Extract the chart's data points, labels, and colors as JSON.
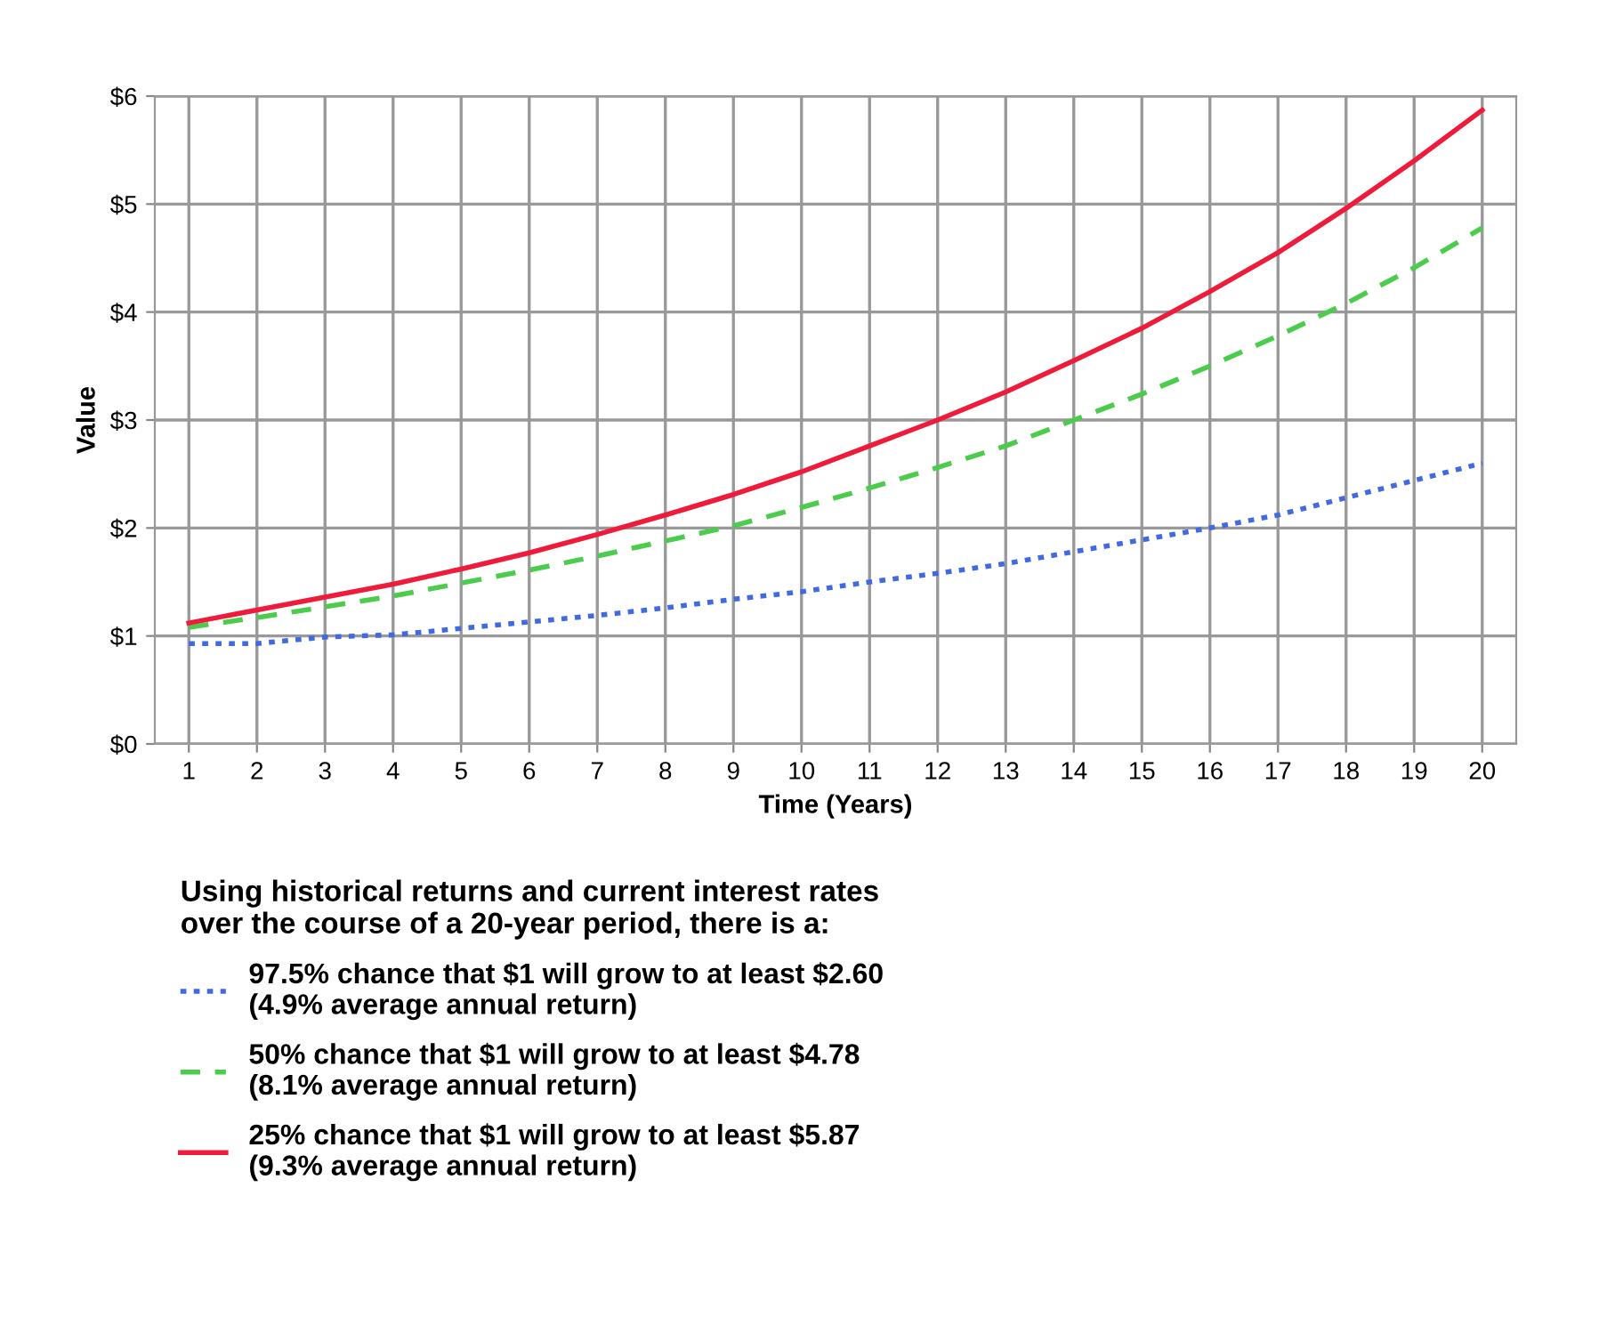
{
  "chart_data": {
    "type": "line",
    "xlabel": "Time (Years)",
    "ylabel": "Value",
    "legend_title": "Using historical returns and current interest rates\nover the course of a 20-year period, there is a:",
    "x": [
      1,
      2,
      3,
      4,
      5,
      6,
      7,
      8,
      9,
      10,
      11,
      12,
      13,
      14,
      15,
      16,
      17,
      18,
      19,
      20
    ],
    "series": [
      {
        "name": "97.5% chance that $1 will grow to at least $2.60\n(4.9% average annual return)",
        "color": "#4169e1",
        "line_style": "dotted",
        "values": [
          0.93,
          0.93,
          0.99,
          1.01,
          1.07,
          1.13,
          1.19,
          1.26,
          1.34,
          1.41,
          1.5,
          1.58,
          1.67,
          1.78,
          1.89,
          2.0,
          2.12,
          2.28,
          2.44,
          2.6
        ]
      },
      {
        "name": "50% chance that $1 will grow to at least $4.78\n(8.1% average annual return)",
        "color": "#4ccc4c",
        "line_style": "dashed",
        "values": [
          1.08,
          1.17,
          1.27,
          1.37,
          1.49,
          1.61,
          1.74,
          1.88,
          2.02,
          2.19,
          2.37,
          2.56,
          2.76,
          3.0,
          3.24,
          3.5,
          3.78,
          4.08,
          4.41,
          4.78
        ]
      },
      {
        "name": "25% chance that $1 will grow to at least $5.87\n(9.3% average annual return)",
        "color": "#ee1c3a",
        "line_style": "solid",
        "values": [
          1.12,
          1.24,
          1.36,
          1.48,
          1.62,
          1.77,
          1.94,
          2.12,
          2.31,
          2.52,
          2.76,
          3.0,
          3.26,
          3.55,
          3.85,
          4.19,
          4.55,
          4.96,
          5.4,
          5.87
        ]
      }
    ],
    "xlim": [
      0.5,
      20.5
    ],
    "xticks": [
      1,
      2,
      3,
      4,
      5,
      6,
      7,
      8,
      9,
      10,
      11,
      12,
      13,
      14,
      15,
      16,
      17,
      18,
      19,
      20
    ],
    "ylim": [
      0,
      6
    ],
    "yticks": [
      {
        "value": 0,
        "label": "$0"
      },
      {
        "value": 1,
        "label": "$1"
      },
      {
        "value": 2,
        "label": "$2"
      },
      {
        "value": 3,
        "label": "$3"
      },
      {
        "value": 4,
        "label": "$4"
      },
      {
        "value": 5,
        "label": "$5"
      },
      {
        "value": 6,
        "label": "$6"
      }
    ],
    "grid": true,
    "legend": "bottom",
    "marker": "none"
  }
}
